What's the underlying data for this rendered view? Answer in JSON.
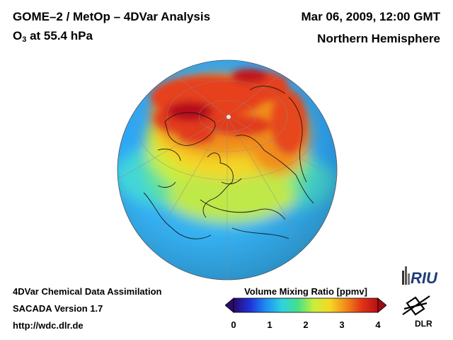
{
  "header": {
    "title": "GOME–2 / MetOp – 4DVar Analysis",
    "subtitle_main": "O",
    "subtitle_sub": "3",
    "subtitle_rest": " at 55.4 hPa",
    "date": "Mar 06, 2009, 12:00 GMT",
    "region": "Northern Hemisphere"
  },
  "footer": {
    "line1": "4DVar Chemical Data Assimilation",
    "line2": "SACADA Version 1.7",
    "line3": "http://wdc.dlr.de"
  },
  "colorbar": {
    "title": "Volume Mixing Ratio [ppmv]",
    "ticks": [
      "0",
      "1",
      "2",
      "3",
      "4"
    ],
    "range": [
      0,
      4
    ],
    "colors": [
      "#2a0b6e",
      "#1f2fd8",
      "#1e8cf2",
      "#2ed2e0",
      "#45e08a",
      "#c9ee3a",
      "#f5d823",
      "#f08a18",
      "#e23318",
      "#b80f12"
    ]
  },
  "logos": {
    "riu": "RIU",
    "dlr": "DLR"
  },
  "map": {
    "projection": "orthographic",
    "hemisphere": "north",
    "colors": {
      "low": "#2fa0ff",
      "mid": "#3fd9c9",
      "high": "#e8372a",
      "peak": "#a8091b"
    }
  }
}
